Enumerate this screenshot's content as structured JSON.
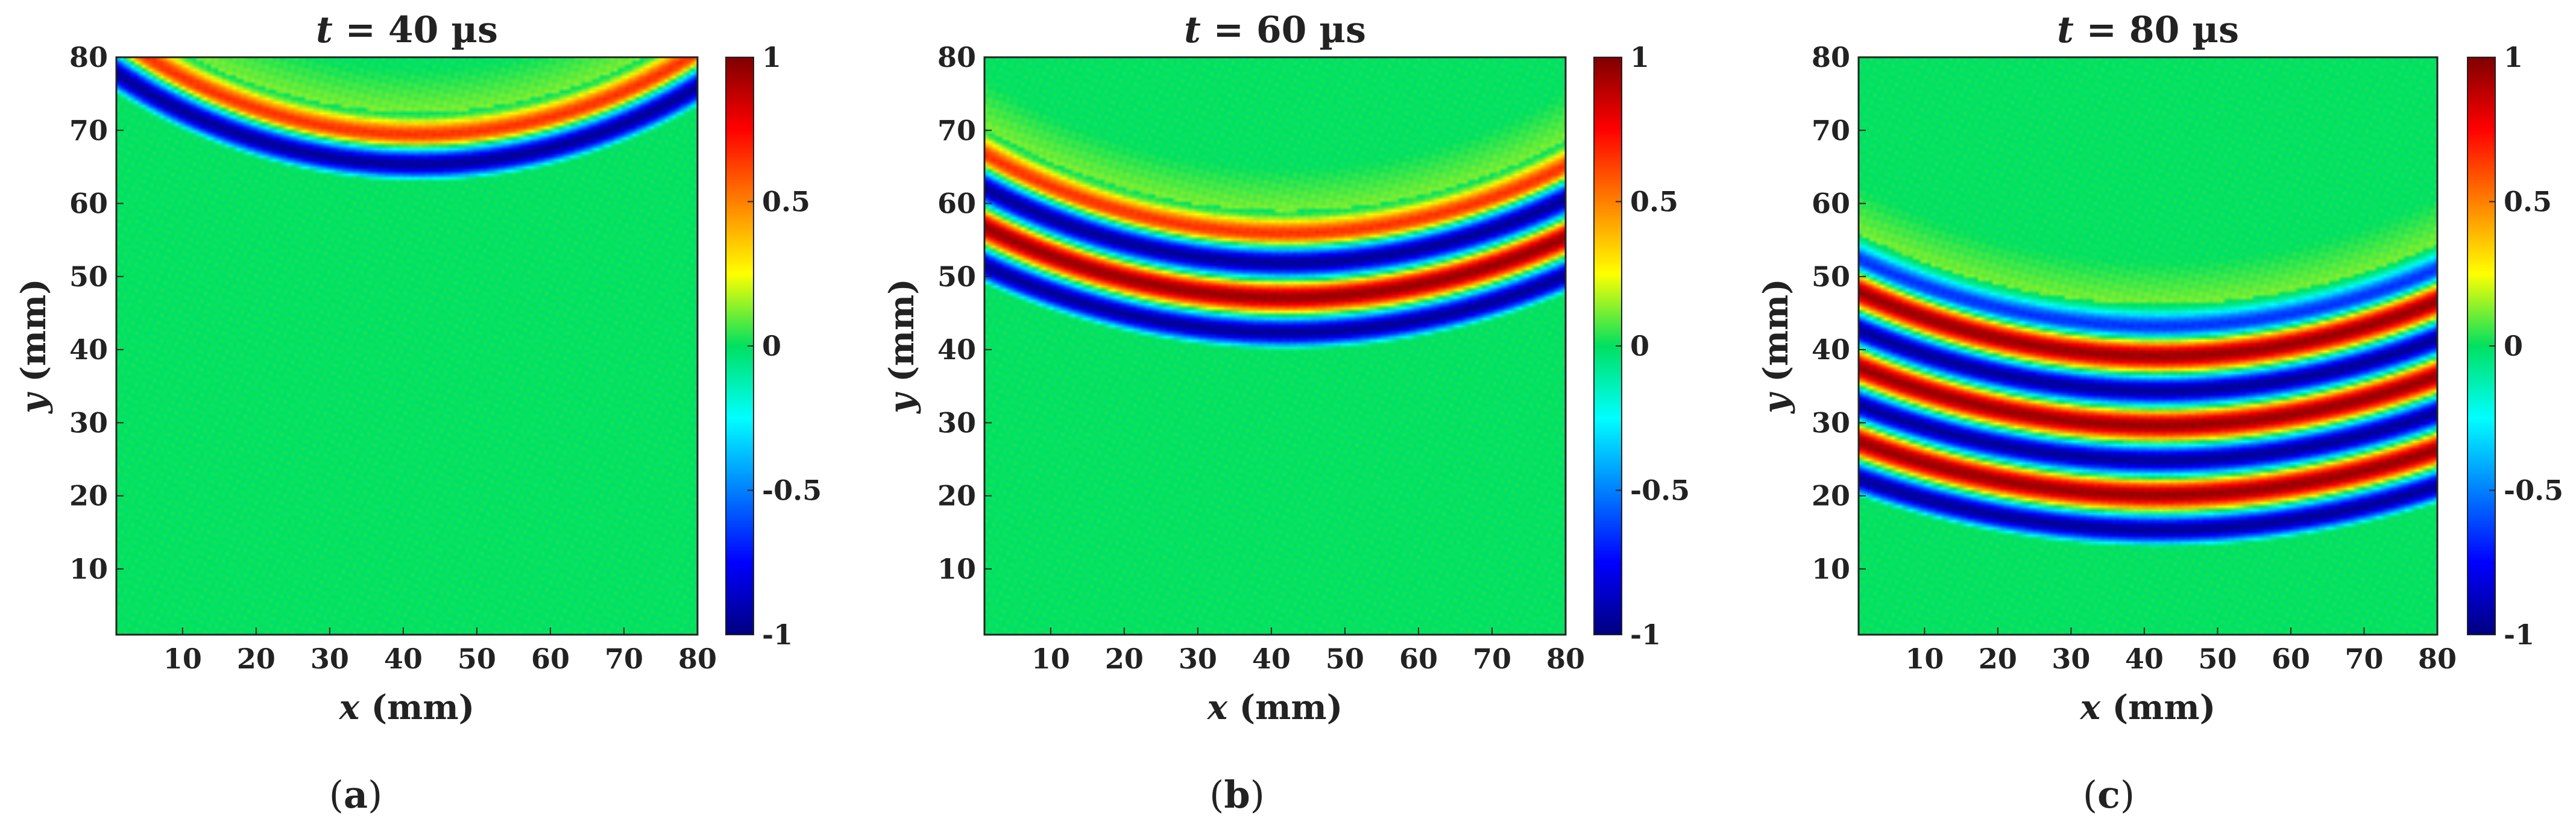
{
  "figure": {
    "colorscale": [
      "#00007f",
      "#0000ff",
      "#0080ff",
      "#00ffff",
      "#00e060",
      "#ffff00",
      "#ff8000",
      "#ff0000",
      "#7f0000"
    ]
  },
  "chart_data": [
    {
      "type": "heatmap",
      "title_var": "t",
      "title_rest": " = 40 µs",
      "caption_letter": "a",
      "xlabel_var": "x",
      "xlabel_unit": " (mm)",
      "ylabel_var": "y",
      "ylabel_unit": " (mm)",
      "xlim": [
        1,
        80
      ],
      "ylim": [
        1,
        80
      ],
      "xticks": [
        10,
        20,
        30,
        40,
        50,
        60,
        70,
        80
      ],
      "yticks": [
        10,
        20,
        30,
        40,
        50,
        60,
        70,
        80
      ],
      "colorbar_ticks": [
        1,
        0.5,
        0,
        -0.5,
        -1
      ],
      "colorbar_labels": [
        "1",
        "0.5",
        "0",
        "-0.5",
        "-1"
      ],
      "clim": [
        -1,
        1
      ],
      "wave": {
        "center": [
          42,
          139
        ],
        "front_radius": 76,
        "num_bands": 2,
        "wavelength": 9.5
      }
    },
    {
      "type": "heatmap",
      "title_var": "t",
      "title_rest": " = 60 µs",
      "caption_letter": "b",
      "xlabel_var": "x",
      "xlabel_unit": " (mm)",
      "ylabel_var": "y",
      "ylabel_unit": " (mm)",
      "xlim": [
        1,
        80
      ],
      "ylim": [
        1,
        80
      ],
      "xticks": [
        10,
        20,
        30,
        40,
        50,
        60,
        70,
        80
      ],
      "yticks": [
        10,
        20,
        30,
        40,
        50,
        60,
        70,
        80
      ],
      "colorbar_ticks": [
        1,
        0.5,
        0,
        -0.5,
        -1
      ],
      "colorbar_labels": [
        "1",
        "0.5",
        "0",
        "-0.5",
        "-1"
      ],
      "clim": [
        -1,
        1
      ],
      "wave": {
        "center": [
          42,
          139
        ],
        "front_radius": 99,
        "num_bands": 4,
        "wavelength": 9.5
      }
    },
    {
      "type": "heatmap",
      "title_var": "t",
      "title_rest": " = 80 µs",
      "caption_letter": "c",
      "xlabel_var": "x",
      "xlabel_unit": " (mm)",
      "ylabel_var": "y",
      "ylabel_unit": " (mm)",
      "xlim": [
        1,
        80
      ],
      "ylim": [
        1,
        80
      ],
      "xticks": [
        10,
        20,
        30,
        40,
        50,
        60,
        70,
        80
      ],
      "yticks": [
        10,
        20,
        30,
        40,
        50,
        60,
        70,
        80
      ],
      "colorbar_ticks": [
        1,
        0.5,
        0,
        -0.5,
        -1
      ],
      "colorbar_labels": [
        "1",
        "0.5",
        "0",
        "-0.5",
        "-1"
      ],
      "clim": [
        -1,
        1
      ],
      "wave": {
        "center": [
          42,
          139
        ],
        "front_radius": 126,
        "num_bands": 7,
        "wavelength": 9.5
      }
    }
  ]
}
